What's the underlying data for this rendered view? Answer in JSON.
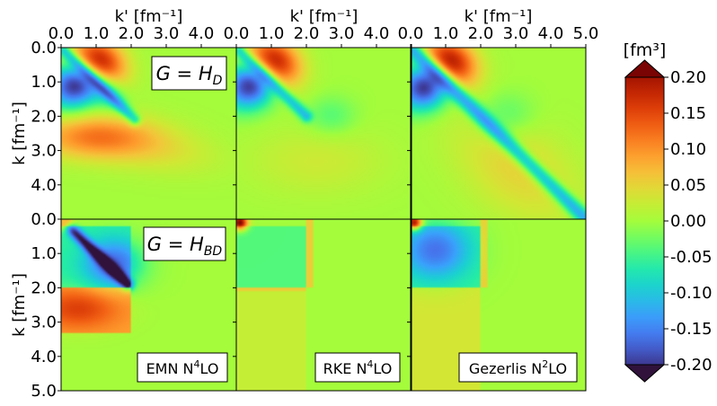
{
  "chart_data": {
    "type": "heatmap",
    "x_axis": {
      "label": "k' [fm⁻¹]",
      "range": [
        0.0,
        5.0
      ],
      "ticks": [
        "0.0",
        "1.0",
        "2.0",
        "3.0",
        "4.0"
      ],
      "last_panel_ticks": [
        "0.0",
        "1.0",
        "2.0",
        "3.0",
        "4.0",
        "5.0"
      ]
    },
    "y_axis": {
      "label": "k [fm⁻¹]",
      "range": [
        0.0,
        5.0
      ],
      "ticks_top_row": [
        "0.0",
        "1.0",
        "2.0",
        "3.0",
        "4.0"
      ],
      "ticks_bottom_row": [
        "0.0",
        "1.0",
        "2.0",
        "3.0",
        "4.0",
        "5.0"
      ]
    },
    "colorbar": {
      "label": "[fm³]",
      "range": [
        -0.2,
        0.2
      ],
      "ticks": [
        "0.20",
        "0.15",
        "0.10",
        "0.05",
        "0.00",
        "-0.05",
        "-0.10",
        "-0.15",
        "-0.20"
      ],
      "extend": "both",
      "colormap": "turbo"
    },
    "row_labels": [
      {
        "main": "G",
        "op": " = ",
        "sym": "H",
        "sub": "D"
      },
      {
        "main": "G",
        "op": " = ",
        "sym": "H",
        "sub": "BD"
      }
    ],
    "column_labels": [
      {
        "pre": "EMN N",
        "sup": "4",
        "post": "LO"
      },
      {
        "pre": "RKE N",
        "sup": "4",
        "post": "LO"
      },
      {
        "pre": "Gezerlis N",
        "sup": "2",
        "post": "LO"
      }
    ],
    "panels": [
      {
        "row": 0,
        "col": 0,
        "model": "EMN N4LO",
        "generator": "H_D",
        "features": [
          {
            "kind": "blob",
            "value": -0.2,
            "at": [
              0.45,
              1.05
            ],
            "spread": [
              0.45,
              0.55
            ],
            "angle": 55
          },
          {
            "kind": "blob",
            "value": 0.2,
            "at": [
              1.05,
              0.45
            ],
            "spread": [
              0.55,
              0.45
            ],
            "angle": 35
          },
          {
            "kind": "blob",
            "value": 0.09,
            "at": [
              0.9,
              2.6
            ],
            "spread": [
              1.2,
              0.45
            ],
            "angle": 0
          },
          {
            "kind": "blob",
            "value": 0.035,
            "at": [
              2.5,
              2.9
            ],
            "spread": [
              1.4,
              0.5
            ],
            "angle": 10
          },
          {
            "kind": "ridge",
            "value": -0.1,
            "from": [
              0.1,
              0.1
            ],
            "to": [
              2.1,
              2.1
            ],
            "width": 0.12
          },
          {
            "kind": "blob",
            "value": -0.07,
            "at": [
              1.3,
              1.3
            ],
            "spread": [
              0.45,
              0.3
            ],
            "angle": 45
          }
        ]
      },
      {
        "row": 0,
        "col": 1,
        "model": "RKE N4LO",
        "generator": "H_D",
        "features": [
          {
            "kind": "blob",
            "value": -0.2,
            "at": [
              0.45,
              1.05
            ],
            "spread": [
              0.45,
              0.55
            ],
            "angle": 55
          },
          {
            "kind": "blob",
            "value": 0.2,
            "at": [
              1.05,
              0.45
            ],
            "spread": [
              0.55,
              0.45
            ],
            "angle": 35
          },
          {
            "kind": "ridge",
            "value": -0.09,
            "from": [
              0.1,
              0.1
            ],
            "to": [
              2.0,
              2.0
            ],
            "width": 0.12
          },
          {
            "kind": "blob",
            "value": -0.035,
            "at": [
              2.7,
              2.0
            ],
            "spread": [
              0.5,
              0.4
            ],
            "angle": 0
          },
          {
            "kind": "blob",
            "value": 0.025,
            "at": [
              2.3,
              3.3
            ],
            "spread": [
              1.4,
              0.7
            ],
            "angle": 0
          }
        ]
      },
      {
        "row": 0,
        "col": 2,
        "model": "Gezerlis N2LO",
        "generator": "H_D",
        "features": [
          {
            "kind": "blob",
            "value": -0.2,
            "at": [
              0.45,
              1.1
            ],
            "spread": [
              0.45,
              0.55
            ],
            "angle": 55
          },
          {
            "kind": "blob",
            "value": 0.2,
            "at": [
              1.1,
              0.45
            ],
            "spread": [
              0.55,
              0.45
            ],
            "angle": 35
          },
          {
            "kind": "ridge",
            "value": -0.12,
            "from": [
              0.1,
              0.1
            ],
            "to": [
              5.0,
              5.0
            ],
            "width": 0.16
          },
          {
            "kind": "blob",
            "value": 0.045,
            "at": [
              3.0,
              3.5
            ],
            "spread": [
              1.5,
              0.9
            ],
            "angle": 40
          },
          {
            "kind": "blob",
            "value": -0.04,
            "at": [
              2.7,
              2.0
            ],
            "spread": [
              0.6,
              0.5
            ],
            "angle": 0
          }
        ]
      },
      {
        "row": 1,
        "col": 0,
        "model": "EMN N4LO",
        "generator": "H_BD",
        "features": [
          {
            "kind": "blob",
            "value": 0.2,
            "at": [
              0.1,
              0.1
            ],
            "spread": [
              0.15,
              0.15
            ],
            "angle": 0
          },
          {
            "kind": "ridge",
            "value": -0.14,
            "from": [
              0.1,
              0.1
            ],
            "to": [
              1.9,
              1.9
            ],
            "width": 0.12
          },
          {
            "kind": "region",
            "value": -0.05,
            "box": [
              0.0,
              0.2,
              2.0,
              2.0
            ]
          },
          {
            "kind": "blob",
            "value": -0.1,
            "at": [
              1.5,
              1.3
            ],
            "spread": [
              0.6,
              0.5
            ],
            "angle": 0
          },
          {
            "kind": "region",
            "value": 0.08,
            "box": [
              0.0,
              2.0,
              2.0,
              3.3
            ]
          },
          {
            "kind": "blob",
            "value": 0.06,
            "at": [
              0.5,
              2.6
            ],
            "spread": [
              0.8,
              0.4
            ],
            "angle": 0
          }
        ]
      },
      {
        "row": 1,
        "col": 1,
        "model": "RKE N4LO",
        "generator": "H_BD",
        "features": [
          {
            "kind": "blob",
            "value": 0.2,
            "at": [
              0.1,
              0.1
            ],
            "spread": [
              0.15,
              0.15
            ],
            "angle": 0
          },
          {
            "kind": "region",
            "value": -0.035,
            "box": [
              0.0,
              0.2,
              2.0,
              2.0
            ]
          },
          {
            "kind": "region",
            "value": 0.05,
            "box": [
              2.0,
              0.0,
              2.2,
              2.0
            ]
          },
          {
            "kind": "region",
            "value": 0.05,
            "box": [
              0.0,
              2.0,
              2.0,
              2.1
            ]
          },
          {
            "kind": "region",
            "value": 0.02,
            "box": [
              0.0,
              2.1,
              2.0,
              5.0
            ]
          }
        ]
      },
      {
        "row": 1,
        "col": 2,
        "model": "Gezerlis N2LO",
        "generator": "H_BD",
        "features": [
          {
            "kind": "blob",
            "value": 0.2,
            "at": [
              0.1,
              0.1
            ],
            "spread": [
              0.15,
              0.15
            ],
            "angle": 0
          },
          {
            "kind": "region",
            "value": -0.045,
            "box": [
              0.0,
              0.2,
              2.0,
              2.0
            ]
          },
          {
            "kind": "blob",
            "value": -0.1,
            "at": [
              0.7,
              0.9
            ],
            "spread": [
              0.7,
              0.6
            ],
            "angle": 0
          },
          {
            "kind": "region",
            "value": 0.05,
            "box": [
              2.0,
              0.0,
              2.2,
              2.0
            ]
          },
          {
            "kind": "region",
            "value": 0.03,
            "box": [
              0.0,
              2.0,
              2.0,
              5.0
            ]
          }
        ]
      }
    ]
  }
}
